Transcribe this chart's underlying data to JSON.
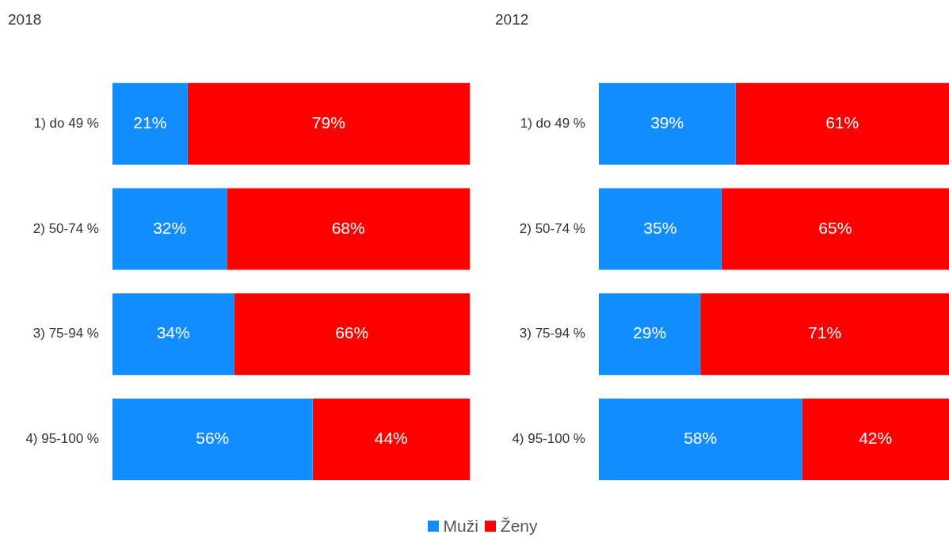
{
  "chart_data": [
    {
      "type": "bar",
      "title": "2018",
      "orientation": "horizontal",
      "stacked": true,
      "categories": [
        "1) do 49 %",
        "2) 50-74 %",
        "3) 75-94 %",
        "4) 95-100 %"
      ],
      "series": [
        {
          "name": "Muži",
          "color": "#118dff",
          "values": [
            21,
            32,
            34,
            56
          ],
          "value_labels": [
            "21%",
            "32%",
            "34%",
            "56%"
          ]
        },
        {
          "name": "Ženy",
          "color": "#ff0000",
          "values": [
            79,
            68,
            66,
            44
          ],
          "value_labels": [
            "79%",
            "68%",
            "66%",
            "44%"
          ]
        }
      ],
      "xlim": [
        0,
        100
      ],
      "tick_labels": "y",
      "legend": "bottom"
    },
    {
      "type": "bar",
      "title": "2012",
      "orientation": "horizontal",
      "stacked": true,
      "categories": [
        "1) do 49 %",
        "2) 50-74 %",
        "3) 75-94 %",
        "4) 95-100 %"
      ],
      "series": [
        {
          "color": "#118dff",
          "values": [
            39,
            35,
            29,
            58
          ],
          "value_labels": [
            "39%",
            "35%",
            "29%",
            "58%"
          ]
        },
        {
          "color": "#ff0000",
          "values": [
            61,
            65,
            71,
            42
          ],
          "value_labels": [
            "61%",
            "65%",
            "71%",
            "42%"
          ]
        }
      ],
      "xlim": [
        0,
        100
      ],
      "tick_labels": "y"
    }
  ]
}
